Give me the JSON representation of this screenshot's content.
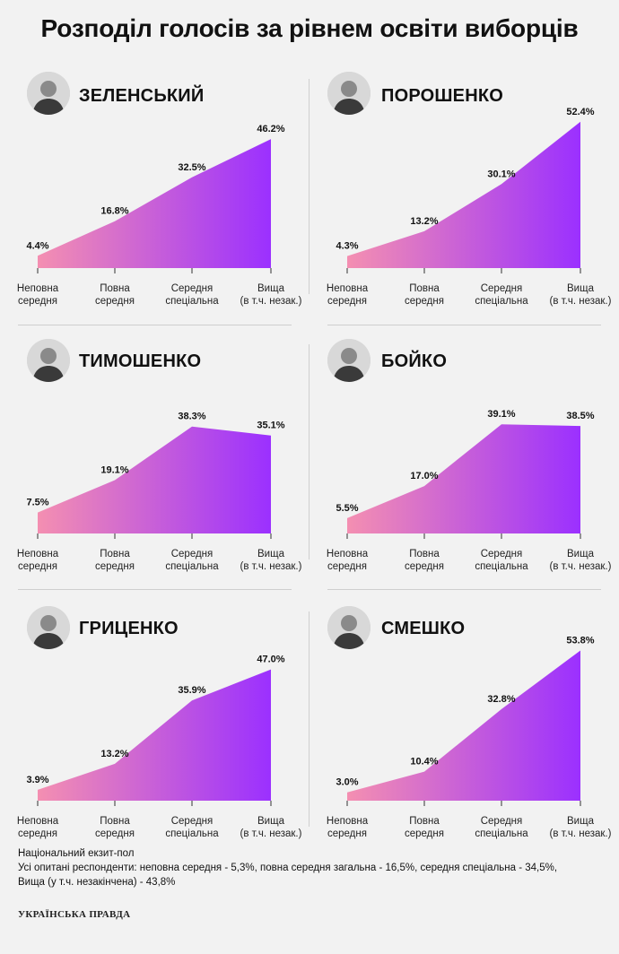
{
  "title": "Розподіл голосів за рівнем освіти виборців",
  "colors": {
    "gradient_start": "#f48fb1",
    "gradient_end": "#9b30ff",
    "background": "#f2f2f2"
  },
  "categories": [
    [
      "Неповна",
      "середня"
    ],
    [
      "Повна",
      "середня"
    ],
    [
      "Середня",
      "спеціальна"
    ],
    [
      "Вища",
      "(в т.ч. незак.)"
    ]
  ],
  "chart_data": [
    {
      "type": "area",
      "title": "ЗЕЛЕНСЬКИЙ",
      "categories": [
        "Неповна середня",
        "Повна середня",
        "Середня спеціальна",
        "Вища (в т.ч. незак.)"
      ],
      "values": [
        4.4,
        16.8,
        32.5,
        46.2
      ],
      "labels": [
        "4.4%",
        "16.8%",
        "32.5%",
        "46.2%"
      ]
    },
    {
      "type": "area",
      "title": "ПОРОШЕНКО",
      "categories": [
        "Неповна середня",
        "Повна середня",
        "Середня спеціальна",
        "Вища (в т.ч. незак.)"
      ],
      "values": [
        4.3,
        13.2,
        30.1,
        52.4
      ],
      "labels": [
        "4.3%",
        "13.2%",
        "30.1%",
        "52.4%"
      ]
    },
    {
      "type": "area",
      "title": "ТИМОШЕНКО",
      "categories": [
        "Неповна середня",
        "Повна середня",
        "Середня спеціальна",
        "Вища (в т.ч. незак.)"
      ],
      "values": [
        7.5,
        19.1,
        38.3,
        35.1
      ],
      "labels": [
        "7.5%",
        "19.1%",
        "38.3%",
        "35.1%"
      ]
    },
    {
      "type": "area",
      "title": "БОЙКО",
      "categories": [
        "Неповна середня",
        "Повна середня",
        "Середня спеціальна",
        "Вища (в т.ч. незак.)"
      ],
      "values": [
        5.5,
        17.0,
        39.1,
        38.5
      ],
      "labels": [
        "5.5%",
        "17.0%",
        "39.1%",
        "38.5%"
      ]
    },
    {
      "type": "area",
      "title": "ГРИЦЕНКО",
      "categories": [
        "Неповна середня",
        "Повна середня",
        "Середня спеціальна",
        "Вища (в т.ч. незак.)"
      ],
      "values": [
        3.9,
        13.2,
        35.9,
        47.0
      ],
      "labels": [
        "3.9%",
        "13.2%",
        "35.9%",
        "47.0%"
      ]
    },
    {
      "type": "area",
      "title": "СМЕШКО",
      "categories": [
        "Неповна середня",
        "Повна середня",
        "Середня спеціальна",
        "Вища (в т.ч. незак.)"
      ],
      "values": [
        3.0,
        10.4,
        32.8,
        53.8
      ],
      "labels": [
        "3.0%",
        "10.4%",
        "32.8%",
        "53.8%"
      ]
    }
  ],
  "footer": {
    "line1": "Національний екзит-пол",
    "line2": "Усі опитані респонденти: неповна середня - 5,3%, повна середня загальна - 16,5%, середня спеціальна - 34,5%,",
    "line3": "Вища (у т.ч. незакінчена) - 43,8%"
  },
  "logo": "УКРАЇНСЬКА ПРАВДА"
}
